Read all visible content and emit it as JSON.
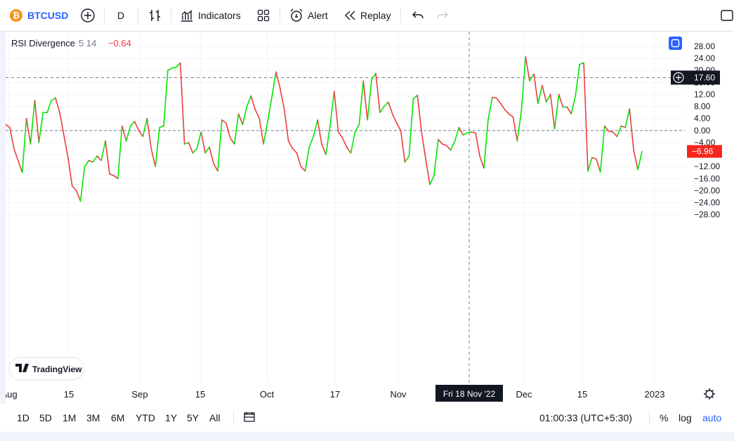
{
  "toolbar": {
    "symbol": "BTCUSD",
    "interval": "D",
    "indicators_label": "Indicators",
    "alert_label": "Alert",
    "replay_label": "Replay"
  },
  "legend": {
    "name": "RSI Divergence",
    "params": "5 14",
    "value": "−0.64"
  },
  "crosshair": {
    "price_label": "17.60",
    "date_label": "Fri 18 Nov '22"
  },
  "last_value_label": "−6.96",
  "watermark": "TradingView",
  "bottom": {
    "ranges": [
      "1D",
      "5D",
      "1M",
      "3M",
      "6M",
      "YTD",
      "1Y",
      "5Y",
      "All"
    ],
    "time": "01:00:33 (UTC+5:30)",
    "percent": "%",
    "log": "log",
    "auto": "auto"
  },
  "colors": {
    "up": "#00e600",
    "down": "#ef3c3c",
    "accent": "#2962ff",
    "bitcoin": "#f7931a"
  },
  "chart_data": {
    "type": "line",
    "y_ticks": [
      "28.00",
      "24.00",
      "20.00",
      "16.00",
      "12.00",
      "8.00",
      "4.00",
      "0.00",
      "−4.00",
      "−8.00",
      "−12.00",
      "−16.00",
      "−20.00",
      "−24.00",
      "−28.00"
    ],
    "x_ticks": [
      "Aug",
      "15",
      "Sep",
      "15",
      "Oct",
      "17",
      "Nov",
      "Dec",
      "15",
      "2023"
    ],
    "ylim": [
      -28,
      28
    ],
    "color_rule": "green when rising, red when falling",
    "series": [
      {
        "values": [
          2,
          1,
          -6,
          -10,
          -14,
          4,
          -4.5,
          10,
          -4,
          6,
          6,
          10,
          10.8,
          6,
          -1.5,
          -9,
          -18.5,
          -20,
          -23.5,
          -12,
          -10,
          -10.5,
          -8.5,
          -10,
          -3.5,
          -14.5,
          -15,
          -16,
          1.5,
          -3.5,
          1.5,
          3,
          0,
          -2,
          4,
          -6,
          -12,
          1,
          1.5,
          20,
          20.8,
          21,
          22.5,
          -4.5,
          -4,
          -7.5,
          -6,
          -0.5,
          -7.5,
          -5.5,
          -11,
          -13.5,
          3.5,
          2.5,
          -2.5,
          -4.5,
          5.5,
          2,
          8,
          11.5,
          7,
          4,
          -4.5,
          3,
          11,
          19.5,
          14,
          7,
          -3.5,
          -6,
          -7.5,
          -12,
          -13.5,
          -5.5,
          -2,
          3.5,
          -4.5,
          -8,
          1.5,
          13,
          -0.5,
          -2.5,
          -5.5,
          -7.5,
          -0.5,
          2,
          16.5,
          3.5,
          17,
          19,
          6,
          8,
          9.5,
          5.5,
          2.5,
          0,
          -10.5,
          -8.5,
          10.5,
          11.7,
          -0.5,
          -9.5,
          -18,
          -15,
          -3,
          -4.5,
          -5,
          -6.5,
          -3.5,
          1,
          -1.5,
          -0.8,
          -0.5,
          -0.8,
          -8.5,
          -12.5,
          3.5,
          11,
          10.8,
          9,
          7,
          5.5,
          4.5,
          -3.5,
          6.5,
          24.5,
          16.5,
          18.8,
          9,
          15,
          9.5,
          12,
          0.5,
          12,
          7.8,
          7.8,
          5.5,
          11.5,
          22,
          22.5,
          -13.5,
          -9,
          -9.5,
          -13.8,
          1.5,
          -0.2,
          -0.5,
          -2,
          1.5,
          1,
          7.2,
          -6.5,
          -13,
          -6.96
        ]
      }
    ]
  }
}
